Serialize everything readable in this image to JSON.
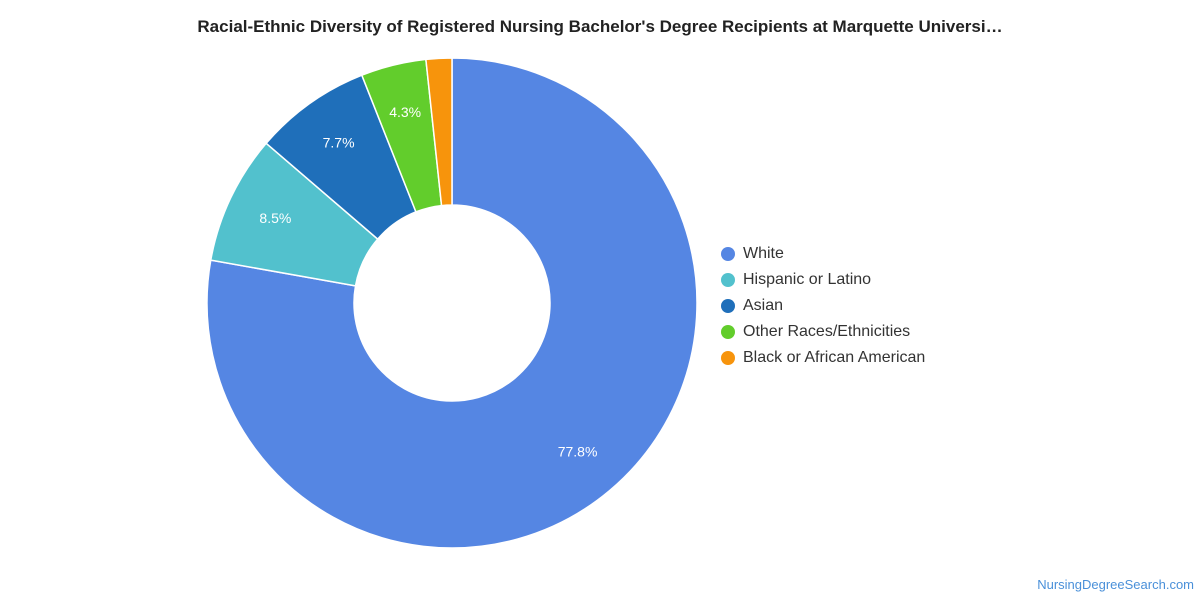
{
  "chart_data": {
    "type": "pie",
    "title": "Racial-Ethnic Diversity of Registered Nursing Bachelor's Degree Recipients at Marquette Universi…",
    "donut": true,
    "legend_position": "right",
    "slices": [
      {
        "name": "White",
        "value": 77.8,
        "label": "77.8%",
        "color": "#5586e3"
      },
      {
        "name": "Hispanic or Latino",
        "value": 8.5,
        "label": "8.5%",
        "color": "#52c1cd"
      },
      {
        "name": "Asian",
        "value": 7.7,
        "label": "7.7%",
        "color": "#1f6fba"
      },
      {
        "name": "Other Races/Ethnicities",
        "value": 4.3,
        "label": "4.3%",
        "color": "#62cd2c"
      },
      {
        "name": "Black or African American",
        "value": 1.7,
        "label": "",
        "color": "#f7940c"
      }
    ]
  },
  "watermark": "NursingDegreeSearch.com"
}
